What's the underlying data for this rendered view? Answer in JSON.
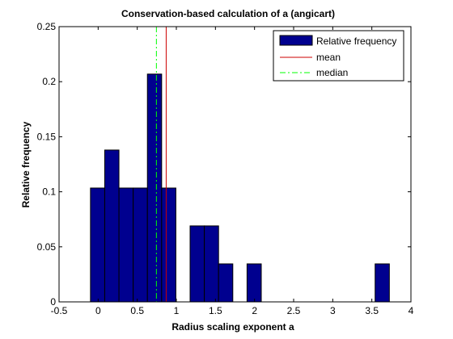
{
  "chart_data": {
    "type": "bar",
    "title": "Conservation-based calculation of a (angicart)",
    "xlabel": "Radius scaling exponent a",
    "ylabel": "Relative frequency",
    "xlim": [
      -0.5,
      4
    ],
    "ylim": [
      0,
      0.25
    ],
    "xticks": [
      "-0.5",
      "0",
      "0.5",
      "1",
      "1.5",
      "2",
      "2.5",
      "3",
      "3.5",
      "4"
    ],
    "yticks": [
      "0",
      "0.05",
      "0.1",
      "0.15",
      "0.2",
      "0.25"
    ],
    "bins": [
      {
        "x": -0.007,
        "value": 0.1034
      },
      {
        "x": 0.175,
        "value": 0.1379
      },
      {
        "x": 0.357,
        "value": 0.1034
      },
      {
        "x": 0.539,
        "value": 0.1034
      },
      {
        "x": 0.721,
        "value": 0.2069
      },
      {
        "x": 0.903,
        "value": 0.1034
      },
      {
        "x": 1.267,
        "value": 0.069
      },
      {
        "x": 1.449,
        "value": 0.069
      },
      {
        "x": 1.631,
        "value": 0.0345
      },
      {
        "x": 1.995,
        "value": 0.0345
      },
      {
        "x": 3.633,
        "value": 0.0345
      }
    ],
    "bin_width": 0.182,
    "mean": 0.87,
    "median": 0.745,
    "legend": {
      "placement": "top-right",
      "entries": [
        {
          "label": "Relative frequency",
          "kind": "patch"
        },
        {
          "label": "mean",
          "kind": "line"
        },
        {
          "label": "median",
          "kind": "dashdot"
        }
      ]
    },
    "colors": {
      "bar_fill": "#00008f",
      "bar_edge": "#000000",
      "mean": "#cc0000",
      "median": "#00ff00",
      "axes": "#000000"
    }
  }
}
